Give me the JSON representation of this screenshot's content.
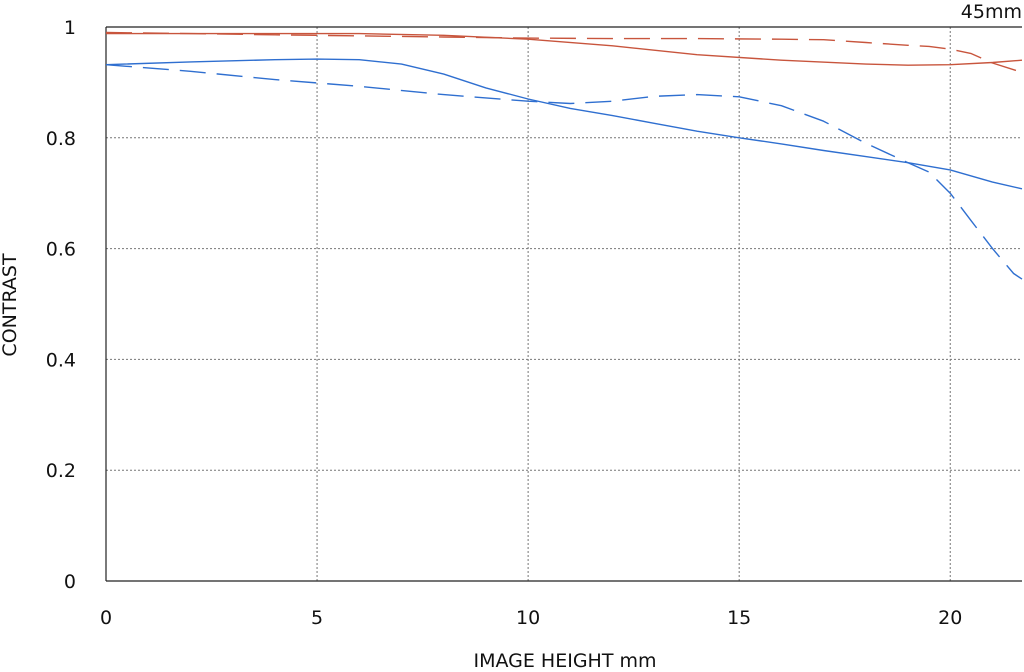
{
  "chart_data": {
    "type": "line",
    "title": "45mm",
    "xlabel": "IMAGE HEIGHT  mm",
    "ylabel": "CONTRAST",
    "xlim": [
      0,
      21.7
    ],
    "ylim": [
      0,
      1
    ],
    "xticks": [
      0,
      5,
      10,
      15,
      20
    ],
    "yticks": [
      0,
      0.2,
      0.4,
      0.6,
      0.8,
      1
    ],
    "grid": true,
    "colors": {
      "red": "#c8553d",
      "blue": "#2f6fd0",
      "grid": "#777777",
      "axis": "#222222"
    },
    "series": [
      {
        "color": "red",
        "dash": "solid",
        "x": [
          0,
          2,
          4,
          6,
          8,
          10,
          12,
          14,
          16,
          18,
          19,
          20,
          21,
          21.7
        ],
        "y": [
          0.988,
          0.988,
          0.988,
          0.988,
          0.985,
          0.978,
          0.966,
          0.95,
          0.94,
          0.933,
          0.931,
          0.932,
          0.936,
          0.94
        ]
      },
      {
        "color": "red",
        "dash": "dashed",
        "x": [
          0,
          2,
          4,
          6,
          8,
          10,
          12,
          14,
          16,
          17,
          18,
          19,
          19.5,
          20,
          20.5,
          21,
          21.7
        ],
        "y": [
          0.99,
          0.988,
          0.986,
          0.984,
          0.982,
          0.98,
          0.979,
          0.979,
          0.978,
          0.977,
          0.972,
          0.967,
          0.965,
          0.96,
          0.952,
          0.935,
          0.918
        ]
      },
      {
        "color": "blue",
        "dash": "solid",
        "x": [
          0,
          2,
          4,
          5,
          6,
          7,
          8,
          9,
          10,
          11,
          12,
          13,
          14,
          15,
          16,
          17,
          18,
          19,
          20,
          21,
          21.7
        ],
        "y": [
          0.932,
          0.937,
          0.941,
          0.942,
          0.941,
          0.933,
          0.915,
          0.89,
          0.87,
          0.853,
          0.84,
          0.826,
          0.812,
          0.8,
          0.789,
          0.777,
          0.766,
          0.755,
          0.742,
          0.72,
          0.708
        ]
      },
      {
        "color": "blue",
        "dash": "dashed",
        "x": [
          0,
          2,
          4,
          6,
          8,
          10,
          11,
          12,
          13,
          14,
          15,
          16,
          17,
          18,
          19,
          19.5,
          20,
          20.5,
          21,
          21.5,
          21.7
        ],
        "y": [
          0.932,
          0.92,
          0.905,
          0.893,
          0.878,
          0.866,
          0.862,
          0.866,
          0.875,
          0.878,
          0.874,
          0.858,
          0.83,
          0.79,
          0.755,
          0.738,
          0.7,
          0.65,
          0.6,
          0.555,
          0.545
        ]
      }
    ]
  }
}
